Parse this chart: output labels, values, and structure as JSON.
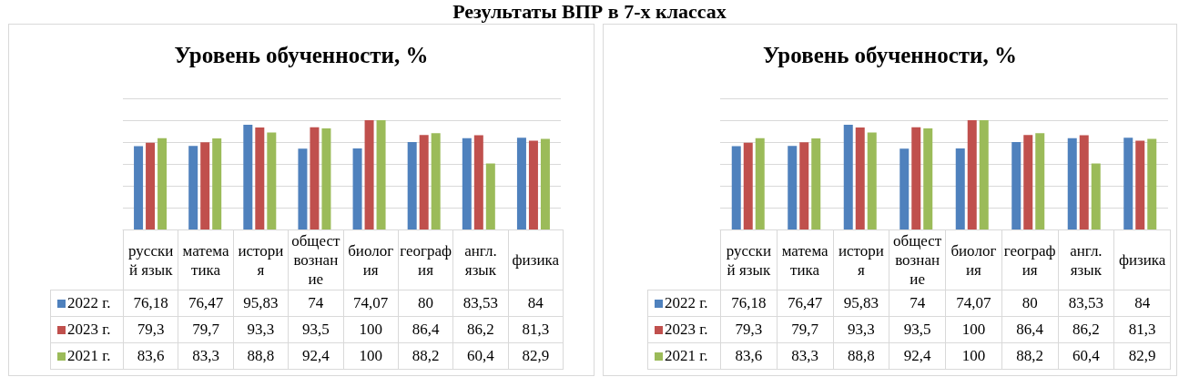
{
  "chart_data": [
    {
      "type": "bar",
      "title": "Уровень обученности, %",
      "annotations": [
        "Результаты ВПР в 7-х классах"
      ],
      "categories": [
        "русский язык",
        "математика",
        "история",
        "обществознание",
        "биология",
        "география",
        "англ. язык",
        "физика"
      ],
      "series": [
        {
          "name": "2022 г.",
          "color": "#4f81bd",
          "values": [
            76.18,
            76.47,
            95.83,
            74,
            74.07,
            80,
            83.53,
            84
          ],
          "value_labels": [
            "76,18",
            "76,47",
            "95,83",
            "74",
            "74,07",
            "80",
            "83,53",
            "84"
          ]
        },
        {
          "name": "2023 г.",
          "color": "#c0504d",
          "values": [
            79.3,
            79.7,
            93.3,
            93.5,
            100,
            86.4,
            86.2,
            81.3
          ],
          "value_labels": [
            "79,3",
            "79,7",
            "93,3",
            "93,5",
            "100",
            "86,4",
            "86,2",
            "81,3"
          ]
        },
        {
          "name": "2021 г.",
          "color": "#9bbb59",
          "values": [
            83.6,
            83.3,
            88.8,
            92.4,
            100,
            88.2,
            60.4,
            82.9
          ],
          "value_labels": [
            "83,6",
            "83,3",
            "88,8",
            "92,4",
            "100",
            "88,2",
            "60,4",
            "82,9"
          ]
        }
      ],
      "ylim": [
        0,
        120
      ],
      "yticks": [
        {
          "value": 0,
          "label": null
        },
        {
          "value": 20,
          "label": null
        },
        {
          "value": 40,
          "label": null
        },
        {
          "value": 60,
          "label": null
        },
        {
          "value": 80,
          "label": null
        },
        {
          "value": 100,
          "label": null
        },
        {
          "value": 120,
          "label": null
        }
      ],
      "grid": "y",
      "legend": "bottom",
      "tick_labels": "x"
    },
    {
      "type": "bar",
      "title": "Уровень обученности, %",
      "categories": [
        "русский язык",
        "математика",
        "история",
        "обществознание",
        "биология",
        "география",
        "англ. язык",
        "физика"
      ],
      "series": [
        {
          "name": "2022 г.",
          "color": "#4f81bd",
          "values": [
            76.18,
            76.47,
            95.83,
            74,
            74.07,
            80,
            83.53,
            84
          ],
          "value_labels": [
            "76,18",
            "76,47",
            "95,83",
            "74",
            "74,07",
            "80",
            "83,53",
            "84"
          ]
        },
        {
          "name": "2023 г.",
          "color": "#c0504d",
          "values": [
            79.3,
            79.7,
            93.3,
            93.5,
            100,
            86.4,
            86.2,
            81.3
          ],
          "value_labels": [
            "79,3",
            "79,7",
            "93,3",
            "93,5",
            "100",
            "86,4",
            "86,2",
            "81,3"
          ]
        },
        {
          "name": "2021 г.",
          "color": "#9bbb59",
          "values": [
            83.6,
            83.3,
            88.8,
            92.4,
            100,
            88.2,
            60.4,
            82.9
          ],
          "value_labels": [
            "83,6",
            "83,3",
            "88,8",
            "92,4",
            "100",
            "88,2",
            "60,4",
            "82,9"
          ]
        }
      ],
      "ylim": [
        0,
        120
      ],
      "yticks": [
        {
          "value": 0,
          "label": null
        },
        {
          "value": 20,
          "label": null
        },
        {
          "value": 40,
          "label": null
        },
        {
          "value": 60,
          "label": null
        },
        {
          "value": 80,
          "label": null
        },
        {
          "value": 100,
          "label": null
        },
        {
          "value": 120,
          "label": null
        }
      ],
      "grid": "y",
      "legend": "bottom",
      "tick_labels": "x"
    }
  ]
}
